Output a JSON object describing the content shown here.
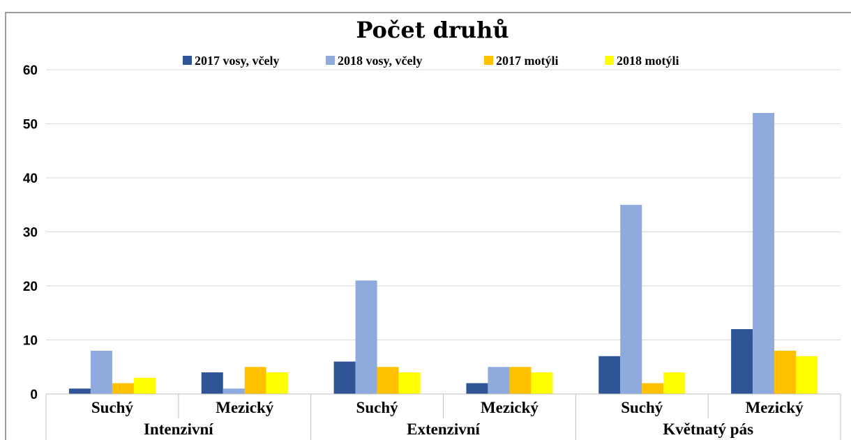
{
  "chart_data": {
    "type": "bar",
    "title": "Počet druhů",
    "groups": [
      {
        "label": "Intenzivní",
        "categories": [
          "Suchý",
          "Mezický"
        ]
      },
      {
        "label": "Extenzivní",
        "categories": [
          "Suchý",
          "Mezický"
        ]
      },
      {
        "label": "Květnatý pás",
        "categories": [
          "Suchý",
          "Mezický"
        ]
      }
    ],
    "categories": [
      "Suchý",
      "Mezický",
      "Suchý",
      "Mezický",
      "Suchý",
      "Mezický"
    ],
    "series": [
      {
        "name": "2017 vosy, včely",
        "color": "#2f5597",
        "values": [
          1,
          4,
          6,
          2,
          7,
          12
        ]
      },
      {
        "name": "2018 vosy, včely",
        "color": "#8faadc",
        "values": [
          8,
          1,
          21,
          5,
          35,
          52
        ]
      },
      {
        "name": "2017 motýli",
        "color": "#ffc000",
        "values": [
          2,
          5,
          5,
          5,
          2,
          8
        ]
      },
      {
        "name": "2018 motýli",
        "color": "#ffff00",
        "values": [
          3,
          4,
          4,
          4,
          4,
          7
        ]
      }
    ],
    "ylim": [
      0,
      60
    ],
    "yticks": [
      0,
      10,
      20,
      30,
      40,
      50,
      60
    ],
    "grid": true,
    "legend": "top"
  }
}
